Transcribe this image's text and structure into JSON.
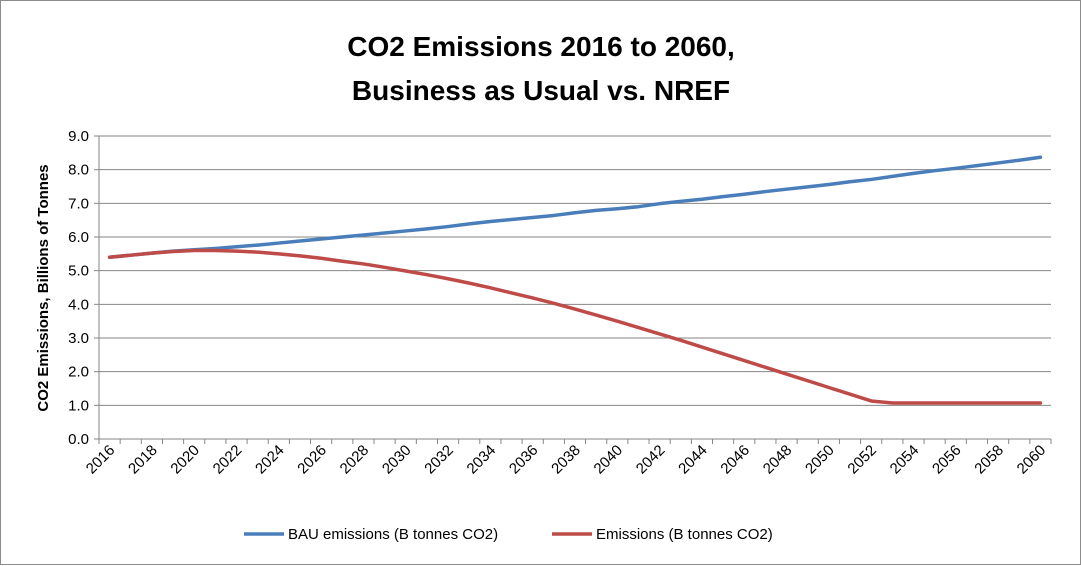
{
  "chart_data": {
    "type": "line",
    "title_lines": [
      "CO2 Emissions 2016 to 2060,",
      "Business as Usual vs. NREF"
    ],
    "xlabel": "",
    "ylabel": "CO2 Emissions, Billions of Tonnes",
    "ylim": [
      0,
      9
    ],
    "yticks": [
      "0.0",
      "1.0",
      "2.0",
      "3.0",
      "4.0",
      "5.0",
      "6.0",
      "7.0",
      "8.0",
      "9.0"
    ],
    "xtick_labels": [
      "2016",
      "2018",
      "2020",
      "2022",
      "2024",
      "2026",
      "2028",
      "2030",
      "2032",
      "2034",
      "2036",
      "2038",
      "2040",
      "2042",
      "2044",
      "2046",
      "2048",
      "2050",
      "2052",
      "2054",
      "2056",
      "2058",
      "2060"
    ],
    "x": [
      2016,
      2017,
      2018,
      2019,
      2020,
      2021,
      2022,
      2023,
      2024,
      2025,
      2026,
      2027,
      2028,
      2029,
      2030,
      2031,
      2032,
      2033,
      2034,
      2035,
      2036,
      2037,
      2038,
      2039,
      2040,
      2041,
      2042,
      2043,
      2044,
      2045,
      2046,
      2047,
      2048,
      2049,
      2050,
      2051,
      2052,
      2053,
      2054,
      2055,
      2056,
      2057,
      2058,
      2059,
      2060
    ],
    "grid": true,
    "legend_position": "bottom",
    "series": [
      {
        "name": "BAU emissions (B tonnes CO2)",
        "color": "#4A7EBB",
        "values": [
          5.4,
          5.46,
          5.52,
          5.58,
          5.62,
          5.66,
          5.71,
          5.76,
          5.82,
          5.88,
          5.94,
          6.0,
          6.06,
          6.12,
          6.18,
          6.24,
          6.31,
          6.39,
          6.46,
          6.52,
          6.58,
          6.64,
          6.72,
          6.79,
          6.84,
          6.9,
          6.99,
          7.06,
          7.12,
          7.2,
          7.27,
          7.35,
          7.42,
          7.49,
          7.56,
          7.64,
          7.71,
          7.8,
          7.89,
          7.97,
          8.04,
          8.12,
          8.2,
          8.28,
          8.37
        ]
      },
      {
        "name": "Emissions (B tonnes CO2)",
        "color": "#BE4B48",
        "values": [
          5.4,
          5.46,
          5.52,
          5.57,
          5.6,
          5.6,
          5.58,
          5.55,
          5.5,
          5.44,
          5.37,
          5.28,
          5.2,
          5.1,
          4.99,
          4.88,
          4.76,
          4.63,
          4.49,
          4.34,
          4.19,
          4.03,
          3.86,
          3.68,
          3.5,
          3.31,
          3.12,
          2.93,
          2.73,
          2.53,
          2.33,
          2.13,
          1.93,
          1.73,
          1.53,
          1.33,
          1.13,
          1.07,
          1.07,
          1.07,
          1.07,
          1.07,
          1.07,
          1.07,
          1.07
        ]
      }
    ]
  }
}
